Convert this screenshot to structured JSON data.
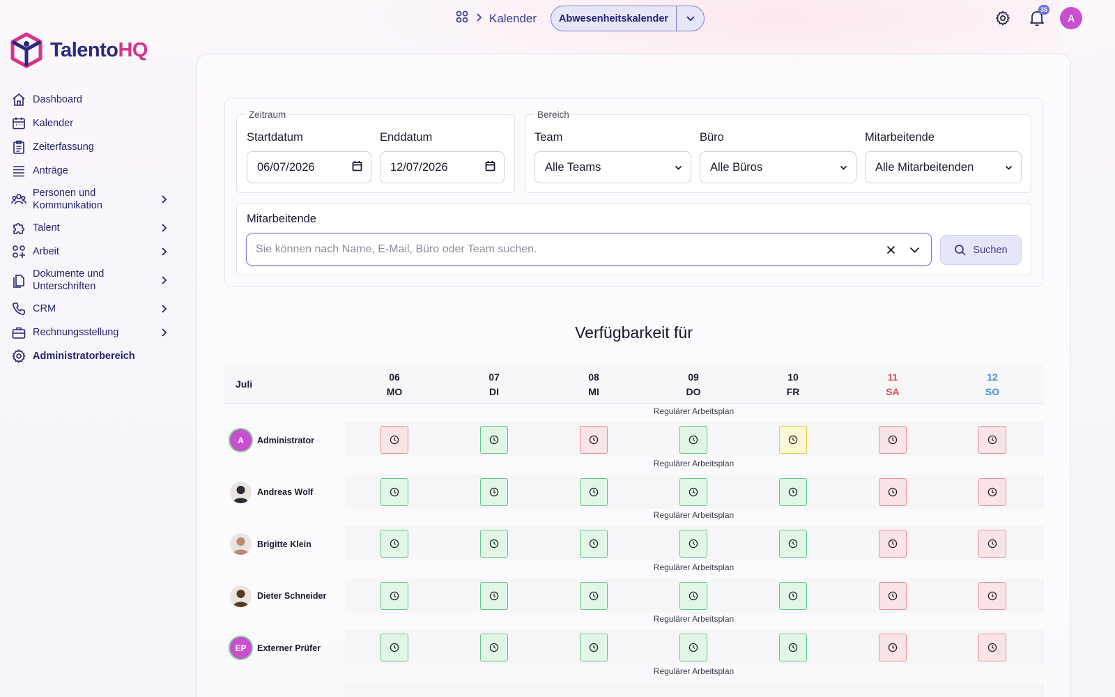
{
  "brand": {
    "part1": "Talento",
    "part2": "HQ"
  },
  "nav": [
    {
      "label": "Dashboard",
      "icon": "home-icon",
      "chevron": false
    },
    {
      "label": "Kalender",
      "icon": "calendar-icon",
      "chevron": false
    },
    {
      "label": "Zeiterfassung",
      "icon": "clipboard-icon",
      "chevron": false
    },
    {
      "label": "Anträge",
      "icon": "list-icon",
      "chevron": false
    },
    {
      "label": "Personen und Kommunikation",
      "icon": "people-icon",
      "chevron": true
    },
    {
      "label": "Talent",
      "icon": "puzzle-icon",
      "chevron": true
    },
    {
      "label": "Arbeit",
      "icon": "grid-icon",
      "chevron": true
    },
    {
      "label": "Dokumente und Unterschriften",
      "icon": "documents-icon",
      "chevron": true
    },
    {
      "label": "CRM",
      "icon": "phone-icon",
      "chevron": true
    },
    {
      "label": "Rechnungsstellung",
      "icon": "briefcase-icon",
      "chevron": true
    },
    {
      "label": "Administratorbereich",
      "icon": "gear-icon",
      "chevron": false
    }
  ],
  "header": {
    "breadcrumb": "Kalender",
    "view_button": "Abwesenheitskalender",
    "notification_count": "35",
    "user_initial": "A"
  },
  "filters": {
    "zeitraum_legend": "Zeitraum",
    "start_label": "Startdatum",
    "start_value": "06/07/2026",
    "end_label": "Enddatum",
    "end_value": "12/07/2026",
    "bereich_legend": "Bereich",
    "team_label": "Team",
    "team_value": "Alle Teams",
    "office_label": "Büro",
    "office_value": "Alle Büros",
    "employees_label": "Mitarbeitende",
    "employees_value": "Alle Mitarbeitenden",
    "search_label": "Mitarbeitende",
    "search_placeholder": "Sie können nach Name, E-Mail, Büro oder Team suchen.",
    "search_button": "Suchen"
  },
  "availability": {
    "title": "Verfügbarkeit für",
    "month": "Juli",
    "days": [
      {
        "num": "06",
        "abbr": "MO",
        "kind": "weekday"
      },
      {
        "num": "07",
        "abbr": "DI",
        "kind": "weekday"
      },
      {
        "num": "08",
        "abbr": "MI",
        "kind": "weekday"
      },
      {
        "num": "09",
        "abbr": "DO",
        "kind": "weekday"
      },
      {
        "num": "10",
        "abbr": "FR",
        "kind": "weekday"
      },
      {
        "num": "11",
        "abbr": "SA",
        "kind": "sat"
      },
      {
        "num": "12",
        "abbr": "SO",
        "kind": "sun"
      }
    ],
    "schedule_label": "Regulärer Arbeitsplan",
    "colors": {
      "green": "#64c387",
      "red": "#ec8e96",
      "yellow": "#e2cf3b"
    },
    "people": [
      {
        "name": "Administrator",
        "initials": "A",
        "avatar_color": "#c94fd0",
        "ring": "#7dcf8e",
        "photo": false,
        "statuses": [
          "red",
          "green",
          "red",
          "green",
          "yellow",
          "red",
          "red"
        ]
      },
      {
        "name": "Andreas Wolf",
        "initials": "",
        "avatar_color": "#2b2b33",
        "ring": "",
        "photo": true,
        "statuses": [
          "green",
          "green",
          "green",
          "green",
          "green",
          "red",
          "red"
        ]
      },
      {
        "name": "Brigitte Klein",
        "initials": "",
        "avatar_color": "#b88a72",
        "ring": "",
        "photo": true,
        "statuses": [
          "green",
          "green",
          "green",
          "green",
          "green",
          "red",
          "red"
        ]
      },
      {
        "name": "Dieter Schneider",
        "initials": "",
        "avatar_color": "#5a3b22",
        "ring": "",
        "photo": true,
        "statuses": [
          "green",
          "green",
          "green",
          "green",
          "green",
          "red",
          "red"
        ]
      },
      {
        "name": "Externer Prüfer",
        "initials": "EP",
        "avatar_color": "#c94fd0",
        "ring": "#7dcf8e",
        "photo": false,
        "statuses": [
          "green",
          "green",
          "green",
          "green",
          "green",
          "red",
          "red"
        ]
      }
    ]
  }
}
